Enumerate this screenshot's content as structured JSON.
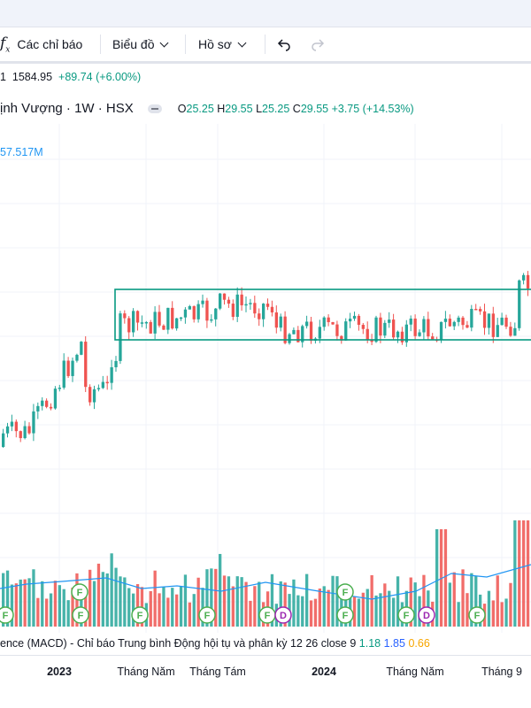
{
  "toolbar": {
    "indicators_label": "Các chỉ báo",
    "chart_label": "Biểu đồ",
    "profile_label": "Hồ sơ"
  },
  "index_line": {
    "prefix": "1",
    "value": "1584.95",
    "change": "+89.74 (+6.00%)"
  },
  "symbol": {
    "name": "ịnh Vượng · 1W · HSX",
    "open_label": "O",
    "open": "25.25",
    "high_label": "H",
    "high": "29.55",
    "low_label": "L",
    "low": "25.25",
    "close_label": "C",
    "close": "29.55",
    "change": "+3.75 (+14.53%)"
  },
  "volume": {
    "value": "57.517M"
  },
  "macd": {
    "label": "ence (MACD) - Chỉ báo Trung bình Động hội tụ và phân kỳ  12 26 close 9",
    "v1": "1.18",
    "v2": "1.85",
    "v3": "0.66"
  },
  "x_axis": [
    "2023",
    "Tháng Năm",
    "Tháng Tám",
    "2024",
    "Tháng Năm",
    "Tháng 9"
  ],
  "colors": {
    "up": "#26a69a",
    "down": "#ef5350",
    "box": "#089981",
    "ma": "#2196f3"
  },
  "markers": [
    "F",
    "D"
  ]
}
